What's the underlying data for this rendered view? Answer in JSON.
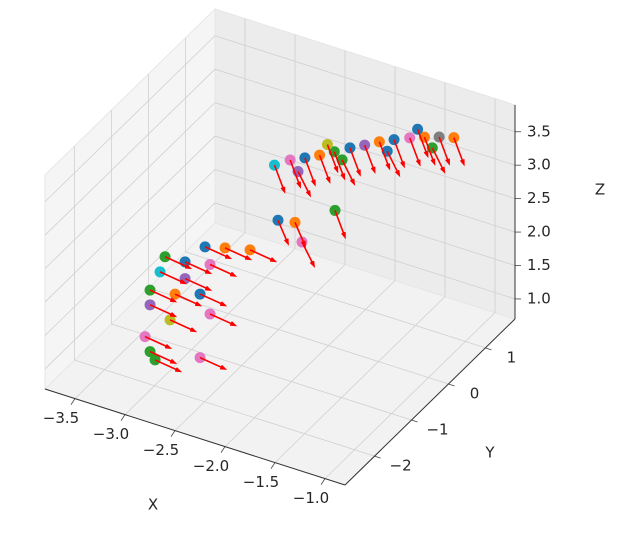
{
  "chart_data": {
    "type": "scatter3d_quiver",
    "xlabel": "X",
    "ylabel": "Y",
    "zlabel": "Z",
    "xlim": [
      -3.8,
      -0.8
    ],
    "ylim": [
      -2.8,
      1.8
    ],
    "zlim": [
      0.7,
      3.9
    ],
    "xticks": [
      {
        "value": -3.5,
        "label": "−3.5"
      },
      {
        "value": -3.0,
        "label": "−3.0"
      },
      {
        "value": -2.5,
        "label": "−2.5"
      },
      {
        "value": -2.0,
        "label": "−2.0"
      },
      {
        "value": -1.5,
        "label": "−1.5"
      },
      {
        "value": -1.0,
        "label": "−1.0"
      }
    ],
    "yticks": [
      {
        "value": -2,
        "label": "−2"
      },
      {
        "value": -1,
        "label": "−1"
      },
      0,
      1
    ],
    "zticks": [
      {
        "value": 1,
        "label": "1.0"
      },
      1.5,
      {
        "value": 2,
        "label": "2.0"
      },
      2.5,
      {
        "value": 3,
        "label": "3.0"
      },
      3.5
    ],
    "grid": true,
    "arrow_color": "#ff0000",
    "points": {
      "x": [
        -2.54,
        -2.42,
        -2.31,
        -2.2,
        -2.09,
        -1.97,
        -1.86,
        -1.75,
        -1.64,
        -1.52,
        -1.41,
        -1.3,
        -1.19,
        -2.36,
        -2.03,
        -1.69,
        -1.35,
        -2.14,
        -1.46,
        -2.32,
        -2.08,
        -2.15,
        -1.75,
        -2.68,
        -2.48,
        -2.23,
        -3.13,
        -2.88,
        -2.63,
        -3.23,
        -2.98,
        -2.73,
        -3.23,
        -3.03,
        -2.63,
        -3.28,
        -3.23,
        -3.18,
        -2.73,
        -3.08,
        -2.88
      ],
      "y": [
        0.0,
        0.1,
        0.2,
        0.3,
        0.4,
        0.5,
        0.6,
        0.7,
        0.8,
        0.9,
        1.0,
        1.1,
        1.2,
        0.15,
        0.45,
        0.75,
        1.05,
        0.35,
        0.95,
        -0.5,
        -0.5,
        -0.5,
        -0.5,
        -1.5,
        -1.5,
        -1.5,
        -1.5,
        -1.5,
        -1.5,
        -1.5,
        -1.5,
        -1.5,
        -1.5,
        -1.5,
        -1.5,
        -1.5,
        -1.5,
        -1.5,
        -1.5,
        -1.5,
        -1.5
      ],
      "z": [
        3.14,
        3.22,
        3.25,
        3.29,
        3.34,
        3.4,
        3.44,
        3.49,
        3.52,
        3.55,
        3.56,
        3.56,
        3.55,
        3.05,
        3.22,
        3.35,
        3.4,
        3.45,
        3.68,
        2.69,
        2.48,
        2.74,
        3.11,
        2.66,
        2.74,
        2.83,
        2.07,
        2.34,
        2.42,
        1.75,
        1.81,
        1.93,
        1.53,
        1.4,
        1.68,
        1.03,
        0.83,
        0.73,
        0.98,
        2.32,
        2.09
      ],
      "u": [
        0.1,
        0.1,
        0.1,
        0.1,
        0.1,
        0.1,
        0.1,
        0.1,
        0.1,
        0.1,
        0.1,
        0.1,
        0.1,
        0.12,
        0.12,
        0.12,
        0.12,
        0.1,
        0.1,
        0.1,
        0.12,
        0.1,
        0.1,
        0.25,
        0.25,
        0.25,
        0.25,
        0.25,
        0.25,
        0.25,
        0.25,
        0.25,
        0.25,
        0.25,
        0.25,
        0.25,
        0.25,
        0.25,
        0.25,
        0.25,
        0.25
      ],
      "v": [
        0,
        0,
        0,
        0,
        0,
        0,
        0,
        0,
        0,
        0,
        0,
        0,
        0,
        0,
        0,
        0,
        0,
        0,
        0,
        0,
        0,
        0,
        0,
        0,
        0,
        0,
        0,
        0,
        0,
        0,
        0,
        0,
        0,
        0,
        0,
        0,
        0,
        0,
        0,
        0,
        0
      ],
      "w": [
        -0.35,
        -0.35,
        -0.35,
        -0.35,
        -0.35,
        -0.35,
        -0.35,
        -0.35,
        -0.35,
        -0.35,
        -0.35,
        -0.35,
        -0.35,
        -0.3,
        -0.3,
        -0.3,
        -0.3,
        -0.35,
        -0.35,
        -0.3,
        -0.3,
        -0.3,
        -0.35,
        -0.05,
        -0.05,
        -0.05,
        -0.05,
        -0.05,
        -0.05,
        -0.05,
        -0.05,
        -0.05,
        -0.05,
        -0.05,
        -0.05,
        -0.05,
        -0.05,
        -0.05,
        -0.05,
        -0.05,
        -0.05
      ],
      "colors": [
        "#17becf",
        "#e377c2",
        "#1f77b4",
        "#ff7f0e",
        "#2ca02c",
        "#1f77b4",
        "#9467bd",
        "#ff7f0e",
        "#1f77b4",
        "#e377c2",
        "#ff7f0e",
        "#7f7f7f",
        "#ff7f0e",
        "#9467bd",
        "#2ca02c",
        "#1f77b4",
        "#2ca02c",
        "#bcbd22",
        "#1f77b4",
        "#1f77b4",
        "#e377c2",
        "#ff7f0e",
        "#2ca02c",
        "#1f77b4",
        "#ff7f0e",
        "#ff7f0e",
        "#17becf",
        "#1f77b4",
        "#e377c2",
        "#2ca02c",
        "#ff7f0e",
        "#1f77b4",
        "#9467bd",
        "#bcbd22",
        "#e377c2",
        "#e377c2",
        "#2ca02c",
        "#2ca02c",
        "#e377c2",
        "#2ca02c",
        "#9467bd"
      ]
    }
  }
}
